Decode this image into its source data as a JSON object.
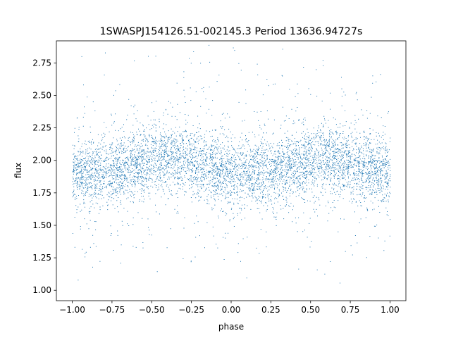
{
  "chart_data": {
    "type": "scatter",
    "title": "1SWASPJ154126.51-002145.3 Period 13636.94727s",
    "xlabel": "phase",
    "ylabel": "flux",
    "xlim": [
      -1.1,
      1.1
    ],
    "ylim": [
      0.92,
      2.92
    ],
    "x_ticks": [
      -1.0,
      -0.75,
      -0.5,
      -0.25,
      0.0,
      0.25,
      0.5,
      0.75,
      1.0
    ],
    "x_tick_labels": [
      "−1.00",
      "−0.75",
      "−0.50",
      "−0.25",
      "0.00",
      "0.25",
      "0.50",
      "0.75",
      "1.00"
    ],
    "y_ticks": [
      1.0,
      1.25,
      1.5,
      1.75,
      2.0,
      2.25,
      2.5,
      2.75
    ],
    "y_tick_labels": [
      "1.00",
      "1.25",
      "1.50",
      "1.75",
      "2.00",
      "2.25",
      "2.50",
      "2.75"
    ],
    "grid": false,
    "marker_color": "#1f77b4",
    "series": [
      {
        "x_range": [
          -1.0,
          1.0
        ],
        "y_range": [
          1.0,
          2.9
        ],
        "trend_phase": [
          -1.0,
          -0.75,
          -0.5,
          -0.4,
          -0.25,
          0.0,
          0.25,
          0.5,
          0.6,
          0.75,
          1.0
        ],
        "trend_flux": [
          1.9,
          1.92,
          2.0,
          2.02,
          1.98,
          1.9,
          1.92,
          2.0,
          2.02,
          1.98,
          1.9
        ]
      }
    ]
  }
}
